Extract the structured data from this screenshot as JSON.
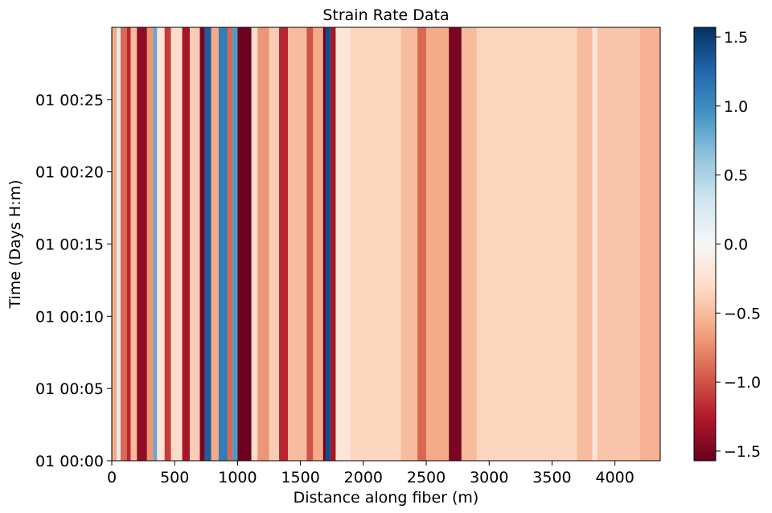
{
  "chart_data": {
    "type": "heatmap",
    "title": "Strain Rate Data",
    "xlabel": "Distance along fiber (m)",
    "ylabel": "Time (Days H:m)",
    "xlim": [
      0,
      4360
    ],
    "x_ticks": [
      0,
      500,
      1000,
      1500,
      2000,
      2500,
      3000,
      3500,
      4000
    ],
    "x_tick_labels": [
      "0",
      "500",
      "1000",
      "1500",
      "2000",
      "2500",
      "3000",
      "3500",
      "4000"
    ],
    "ylim_minutes": [
      0,
      30
    ],
    "y_ticks_minutes": [
      0,
      5,
      10,
      15,
      20,
      25
    ],
    "y_tick_labels": [
      "01 00:00",
      "01 00:05",
      "01 00:10",
      "01 00:15",
      "01 00:20",
      "01 00:25"
    ],
    "colorbar": {
      "colormap": "RdBu",
      "range": [
        -1.57,
        1.57
      ],
      "ticks": [
        1.5,
        1.0,
        0.5,
        0.0,
        -0.5,
        -1.0,
        -1.5
      ],
      "tick_labels": [
        "1.5",
        "1.0",
        "0.5",
        "0.0",
        "−0.5",
        "−1.0",
        "−1.5"
      ]
    },
    "background_value": -0.45,
    "bands": [
      {
        "x": [
          0,
          40
        ],
        "value": -0.6
      },
      {
        "x": [
          40,
          70
        ],
        "value": 0.2
      },
      {
        "x": [
          70,
          120
        ],
        "value": -0.9
      },
      {
        "x": [
          120,
          150
        ],
        "value": -1.2
      },
      {
        "x": [
          150,
          200
        ],
        "value": -0.5
      },
      {
        "x": [
          200,
          280
        ],
        "value": -1.4
      },
      {
        "x": [
          280,
          330
        ],
        "value": -0.7
      },
      {
        "x": [
          330,
          360
        ],
        "value": 0.8
      },
      {
        "x": [
          360,
          420
        ],
        "value": -0.2
      },
      {
        "x": [
          420,
          470
        ],
        "value": -1.1
      },
      {
        "x": [
          470,
          560
        ],
        "value": -0.3
      },
      {
        "x": [
          560,
          620
        ],
        "value": -1.3
      },
      {
        "x": [
          620,
          700
        ],
        "value": -0.4
      },
      {
        "x": [
          700,
          740
        ],
        "value": -1.5
      },
      {
        "x": [
          740,
          790
        ],
        "value": 1.3
      },
      {
        "x": [
          790,
          850
        ],
        "value": -0.6
      },
      {
        "x": [
          850,
          920
        ],
        "value": 1.1
      },
      {
        "x": [
          920,
          960
        ],
        "value": -0.9
      },
      {
        "x": [
          960,
          1000
        ],
        "value": 0.9
      },
      {
        "x": [
          1000,
          1110
        ],
        "value": -1.55
      },
      {
        "x": [
          1110,
          1160
        ],
        "value": -0.3
      },
      {
        "x": [
          1160,
          1250
        ],
        "value": -0.7
      },
      {
        "x": [
          1250,
          1330
        ],
        "value": -0.4
      },
      {
        "x": [
          1330,
          1400
        ],
        "value": -1.2
      },
      {
        "x": [
          1400,
          1550
        ],
        "value": -0.5
      },
      {
        "x": [
          1550,
          1600
        ],
        "value": -1.0
      },
      {
        "x": [
          1600,
          1680
        ],
        "value": -0.6
      },
      {
        "x": [
          1680,
          1700
        ],
        "value": -1.55
      },
      {
        "x": [
          1700,
          1740
        ],
        "value": 1.4
      },
      {
        "x": [
          1740,
          1780
        ],
        "value": -1.3
      },
      {
        "x": [
          1780,
          1900
        ],
        "value": -0.2
      },
      {
        "x": [
          1900,
          2300
        ],
        "value": -0.35
      },
      {
        "x": [
          2300,
          2430
        ],
        "value": -0.5
      },
      {
        "x": [
          2430,
          2500
        ],
        "value": -0.9
      },
      {
        "x": [
          2500,
          2680
        ],
        "value": -0.6
      },
      {
        "x": [
          2680,
          2780
        ],
        "value": -1.5
      },
      {
        "x": [
          2780,
          2900
        ],
        "value": -0.5
      },
      {
        "x": [
          2900,
          3700
        ],
        "value": -0.35
      },
      {
        "x": [
          3700,
          3820
        ],
        "value": -0.5
      },
      {
        "x": [
          3820,
          3860
        ],
        "value": -0.2
      },
      {
        "x": [
          3860,
          4200
        ],
        "value": -0.45
      },
      {
        "x": [
          4200,
          4360
        ],
        "value": -0.55
      }
    ]
  }
}
